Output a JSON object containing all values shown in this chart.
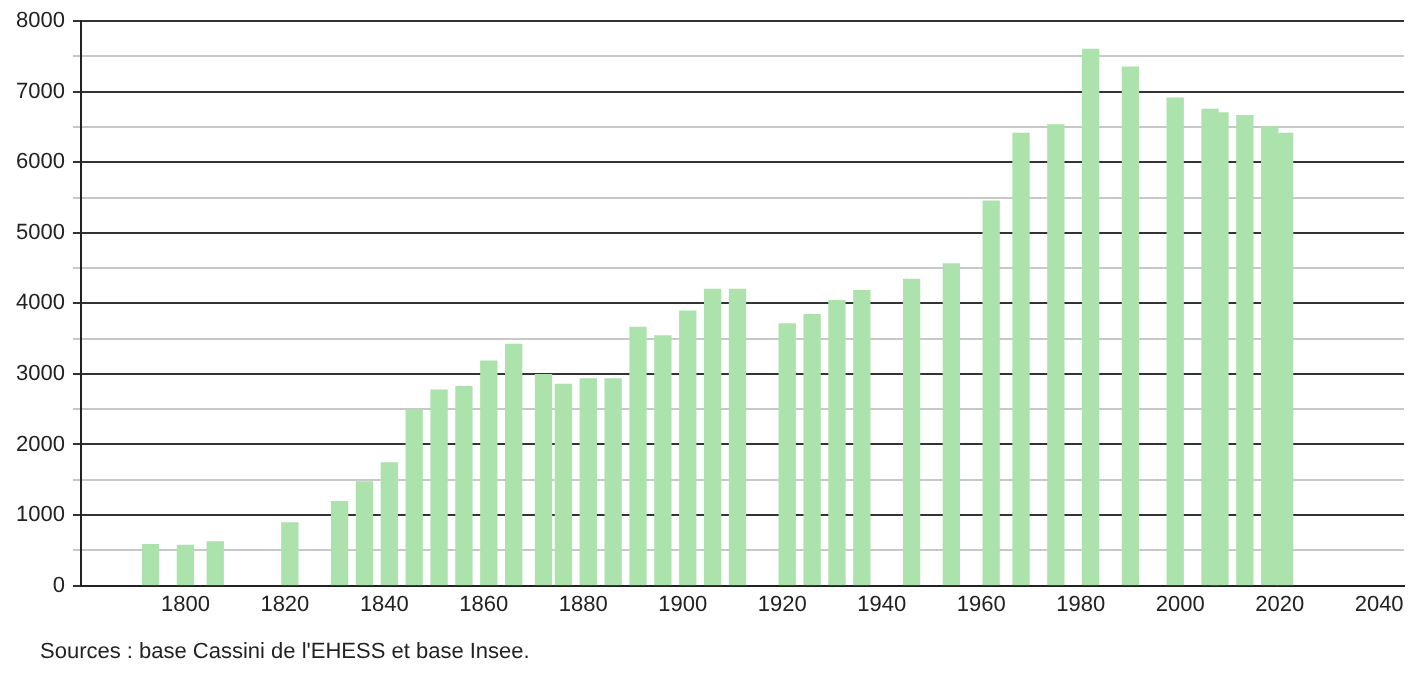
{
  "chart_data": {
    "type": "bar",
    "annotations": [
      "Sources : base Cassini de l'EHESS et base Insee."
    ],
    "x": [
      1793,
      1800,
      1806,
      1821,
      1831,
      1836,
      1841,
      1846,
      1851,
      1856,
      1861,
      1866,
      1872,
      1876,
      1881,
      1886,
      1891,
      1896,
      1901,
      1906,
      1911,
      1921,
      1926,
      1931,
      1936,
      1946,
      1954,
      1962,
      1968,
      1975,
      1982,
      1990,
      1999,
      2006,
      2008,
      2013,
      2018,
      2021
    ],
    "values": [
      580,
      570,
      620,
      890,
      1190,
      1470,
      1740,
      2490,
      2770,
      2820,
      3180,
      3420,
      2990,
      2850,
      2930,
      2930,
      3660,
      3540,
      3890,
      4200,
      4200,
      3710,
      3840,
      4040,
      4180,
      4340,
      4560,
      5450,
      6410,
      6530,
      7600,
      7350,
      6910,
      6750,
      6700,
      6660,
      6500,
      6410
    ],
    "color": "#ace3ac",
    "xlim": [
      1779,
      2045
    ],
    "xticks": [
      1800,
      1820,
      1840,
      1860,
      1880,
      1900,
      1920,
      1940,
      1960,
      1980,
      2000,
      2020,
      2040
    ],
    "ylim": [
      0,
      8000
    ],
    "yticks": [
      0,
      {
        "value": 500,
        "label": null
      },
      1000,
      {
        "value": 1500,
        "label": null
      },
      2000,
      {
        "value": 2500,
        "label": null
      },
      3000,
      {
        "value": 3500,
        "label": null
      },
      4000,
      {
        "value": 4500,
        "label": null
      },
      5000,
      {
        "value": 5500,
        "label": null
      },
      6000,
      {
        "value": 6500,
        "label": null
      },
      7000,
      {
        "value": 7500,
        "label": null
      },
      8000
    ],
    "grid": "y",
    "legend": false
  }
}
